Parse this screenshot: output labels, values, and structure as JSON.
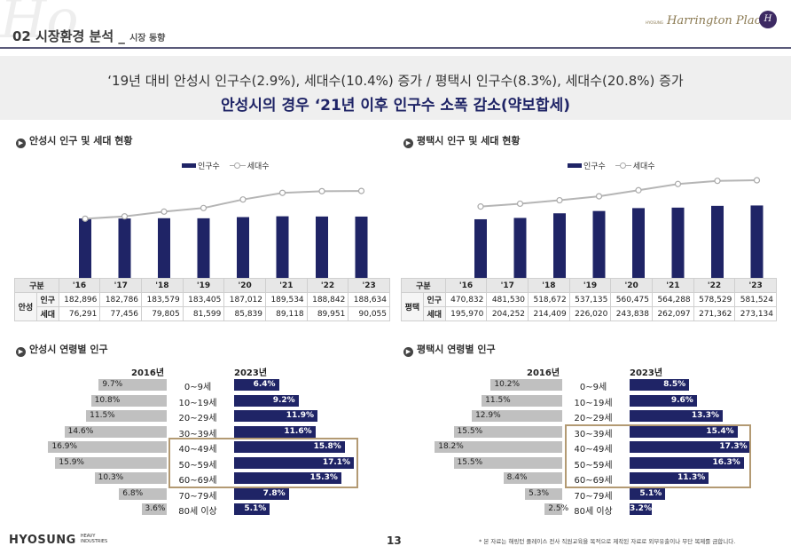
{
  "header": {
    "section": "02 시장환경 분석",
    "separator": "_",
    "subsection": "시장 동향",
    "brand_small": "HYOSUNG",
    "brand_script": "Harrington Place",
    "brand_emblem": "H"
  },
  "banner": {
    "line1": "‘19년 대비 안성시 인구수(2.9%), 세대수(10.4%) 증가 / 평택시 인구수(8.3%), 세대수(20.8%) 증가",
    "line2": "안성시의 경우 ‘21년 이후 인구수 소폭 감소(약보합세)"
  },
  "legend": {
    "population": "인구수",
    "households": "세대수"
  },
  "table_labels": {
    "category": "구분",
    "population": "인구",
    "households": "세대"
  },
  "ages": {
    "year_left": "2016년",
    "year_right": "2023년",
    "labels": [
      "0~9세",
      "10~19세",
      "20~29세",
      "30~39세",
      "40~49세",
      "50~59세",
      "60~69세",
      "70~79세",
      "80세 이상"
    ]
  },
  "anseong": {
    "title": "안성시 인구 및 세대 현황",
    "region": "안성",
    "years": [
      "'16",
      "'17",
      "'18",
      "'19",
      "'20",
      "'21",
      "'22",
      "'23"
    ],
    "population": [
      "182,896",
      "182,786",
      "183,579",
      "183,405",
      "187,012",
      "189,534",
      "188,842",
      "188,634"
    ],
    "households": [
      "76,291",
      "77,456",
      "79,805",
      "81,599",
      "85,839",
      "89,118",
      "89,951",
      "90,055"
    ],
    "age_title": "안성시 연령별 인구",
    "age_2016": [
      "9.7%",
      "10.8%",
      "11.5%",
      "14.6%",
      "16.9%",
      "15.9%",
      "10.3%",
      "6.8%",
      "3.6%"
    ],
    "age_2023": [
      "6.4%",
      "9.2%",
      "11.9%",
      "11.6%",
      "15.8%",
      "17.1%",
      "15.3%",
      "7.8%",
      "5.1%"
    ]
  },
  "pyeongtaek": {
    "title": "평택시 인구 및 세대 현황",
    "region": "평택",
    "years": [
      "'16",
      "'17",
      "'18",
      "'19",
      "'20",
      "'21",
      "'22",
      "'23"
    ],
    "population": [
      "470,832",
      "481,530",
      "518,672",
      "537,135",
      "560,475",
      "564,288",
      "578,529",
      "581,524"
    ],
    "households": [
      "195,970",
      "204,252",
      "214,409",
      "226,020",
      "243,838",
      "262,097",
      "271,362",
      "273,134"
    ],
    "age_title": "평택시 연령별 인구",
    "age_2016": [
      "10.2%",
      "11.5%",
      "12.9%",
      "15.5%",
      "18.2%",
      "15.5%",
      "8.4%",
      "5.3%",
      "2.5%"
    ],
    "age_2023": [
      "8.5%",
      "9.6%",
      "13.3%",
      "15.4%",
      "17.3%",
      "16.3%",
      "11.3%",
      "5.1%",
      "3.2%"
    ]
  },
  "footer": {
    "logo": "HYOSUNG",
    "logo_sub1": "HEAVY",
    "logo_sub2": "INDUSTRIES",
    "page": "13",
    "note": "* 본 자료는 해링턴 플레이스 전사 직원교육을 목적으로 제작된 자료로 외부유출이나 무단 복제를 금합니다."
  },
  "chart_data": [
    {
      "type": "bar",
      "title": "안성시 인구 및 세대 현황",
      "categories": [
        "'16",
        "'17",
        "'18",
        "'19",
        "'20",
        "'21",
        "'22",
        "'23"
      ],
      "series": [
        {
          "name": "인구수",
          "type": "bar",
          "values": [
            182896,
            182786,
            183579,
            183405,
            187012,
            189534,
            188842,
            188634
          ]
        },
        {
          "name": "세대수",
          "type": "line",
          "values": [
            76291,
            77456,
            79805,
            81599,
            85839,
            89118,
            89951,
            90055
          ]
        }
      ]
    },
    {
      "type": "bar",
      "title": "평택시 인구 및 세대 현황",
      "categories": [
        "'16",
        "'17",
        "'18",
        "'19",
        "'20",
        "'21",
        "'22",
        "'23"
      ],
      "series": [
        {
          "name": "인구수",
          "type": "bar",
          "values": [
            470832,
            481530,
            518672,
            537135,
            560475,
            564288,
            578529,
            581524
          ]
        },
        {
          "name": "세대수",
          "type": "line",
          "values": [
            195970,
            204252,
            214409,
            226020,
            243838,
            262097,
            271362,
            273134
          ]
        }
      ]
    },
    {
      "type": "bar",
      "title": "안성시 연령별 인구",
      "categories": [
        "0~9세",
        "10~19세",
        "20~29세",
        "30~39세",
        "40~49세",
        "50~59세",
        "60~69세",
        "70~79세",
        "80세 이상"
      ],
      "series": [
        {
          "name": "2016년",
          "values": [
            9.7,
            10.8,
            11.5,
            14.6,
            16.9,
            15.9,
            10.3,
            6.8,
            3.6
          ]
        },
        {
          "name": "2023년",
          "values": [
            6.4,
            9.2,
            11.9,
            11.6,
            15.8,
            17.1,
            15.3,
            7.8,
            5.1
          ]
        }
      ]
    },
    {
      "type": "bar",
      "title": "평택시 연령별 인구",
      "categories": [
        "0~9세",
        "10~19세",
        "20~29세",
        "30~39세",
        "40~49세",
        "50~59세",
        "60~69세",
        "70~79세",
        "80세 이상"
      ],
      "series": [
        {
          "name": "2016년",
          "values": [
            10.2,
            11.5,
            12.9,
            15.5,
            18.2,
            15.5,
            8.4,
            5.3,
            2.5
          ]
        },
        {
          "name": "2023년",
          "values": [
            8.5,
            9.6,
            13.3,
            15.4,
            17.3,
            16.3,
            11.3,
            5.1,
            3.2
          ]
        }
      ]
    }
  ]
}
